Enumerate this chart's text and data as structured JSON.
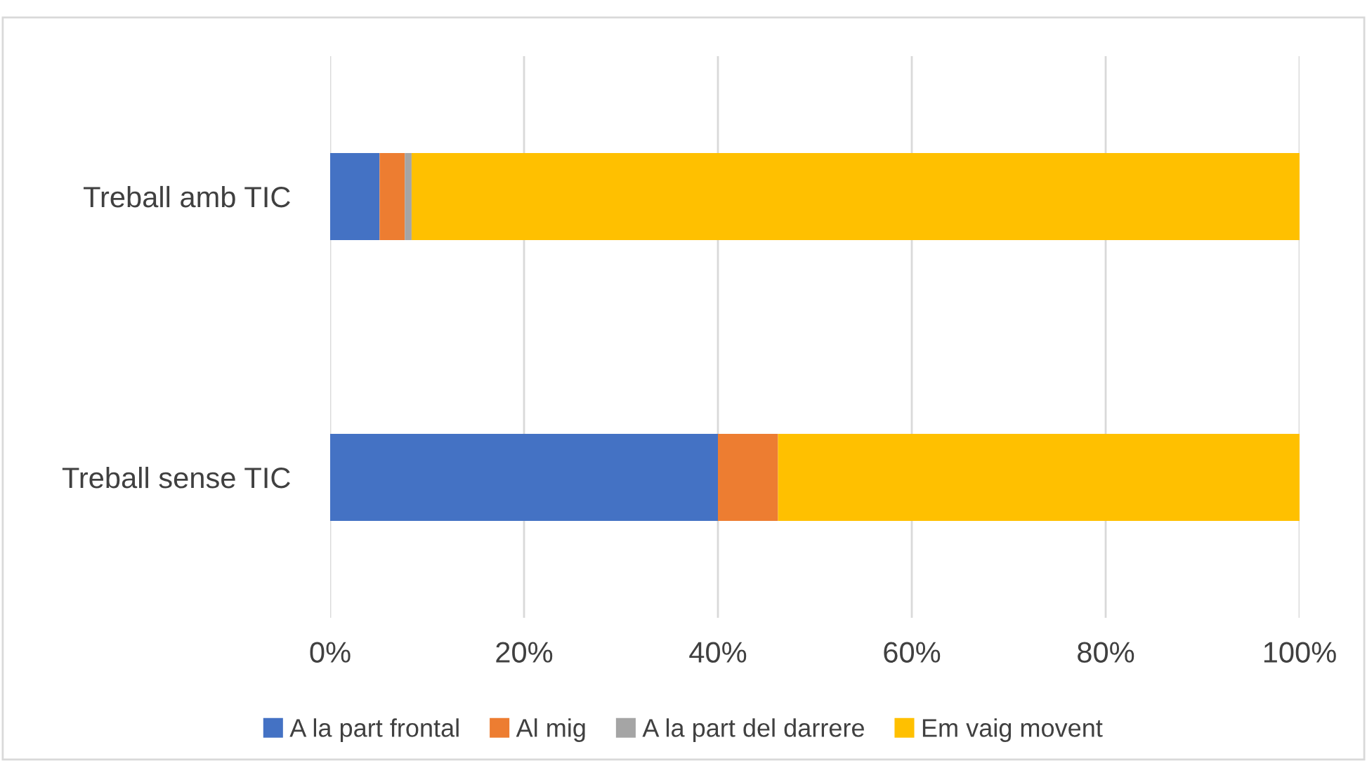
{
  "chart_data": {
    "type": "bar",
    "orientation": "horizontal",
    "stacked": true,
    "categories": [
      "Treball amb TIC",
      "Treball sense TIC"
    ],
    "series": [
      {
        "name": "A la part frontal",
        "color": "#4472c4",
        "values": [
          5.1,
          40.0
        ]
      },
      {
        "name": "Al mig",
        "color": "#ed7d31",
        "values": [
          2.6,
          6.2
        ]
      },
      {
        "name": "A la part del darrere",
        "color": "#a5a5a5",
        "values": [
          0.7,
          0
        ]
      },
      {
        "name": "Em vaig movent",
        "color": "#ffc000",
        "values": [
          91.6,
          53.8
        ]
      }
    ],
    "xlim": [
      0,
      100
    ],
    "xticks": [
      {
        "value": 0,
        "label": "0%"
      },
      {
        "value": 20,
        "label": "20%"
      },
      {
        "value": 40,
        "label": "40%"
      },
      {
        "value": 60,
        "label": "60%"
      },
      {
        "value": 80,
        "label": "80%"
      },
      {
        "value": 100,
        "label": "100%"
      }
    ],
    "grid": "x",
    "legend": "bottom"
  }
}
